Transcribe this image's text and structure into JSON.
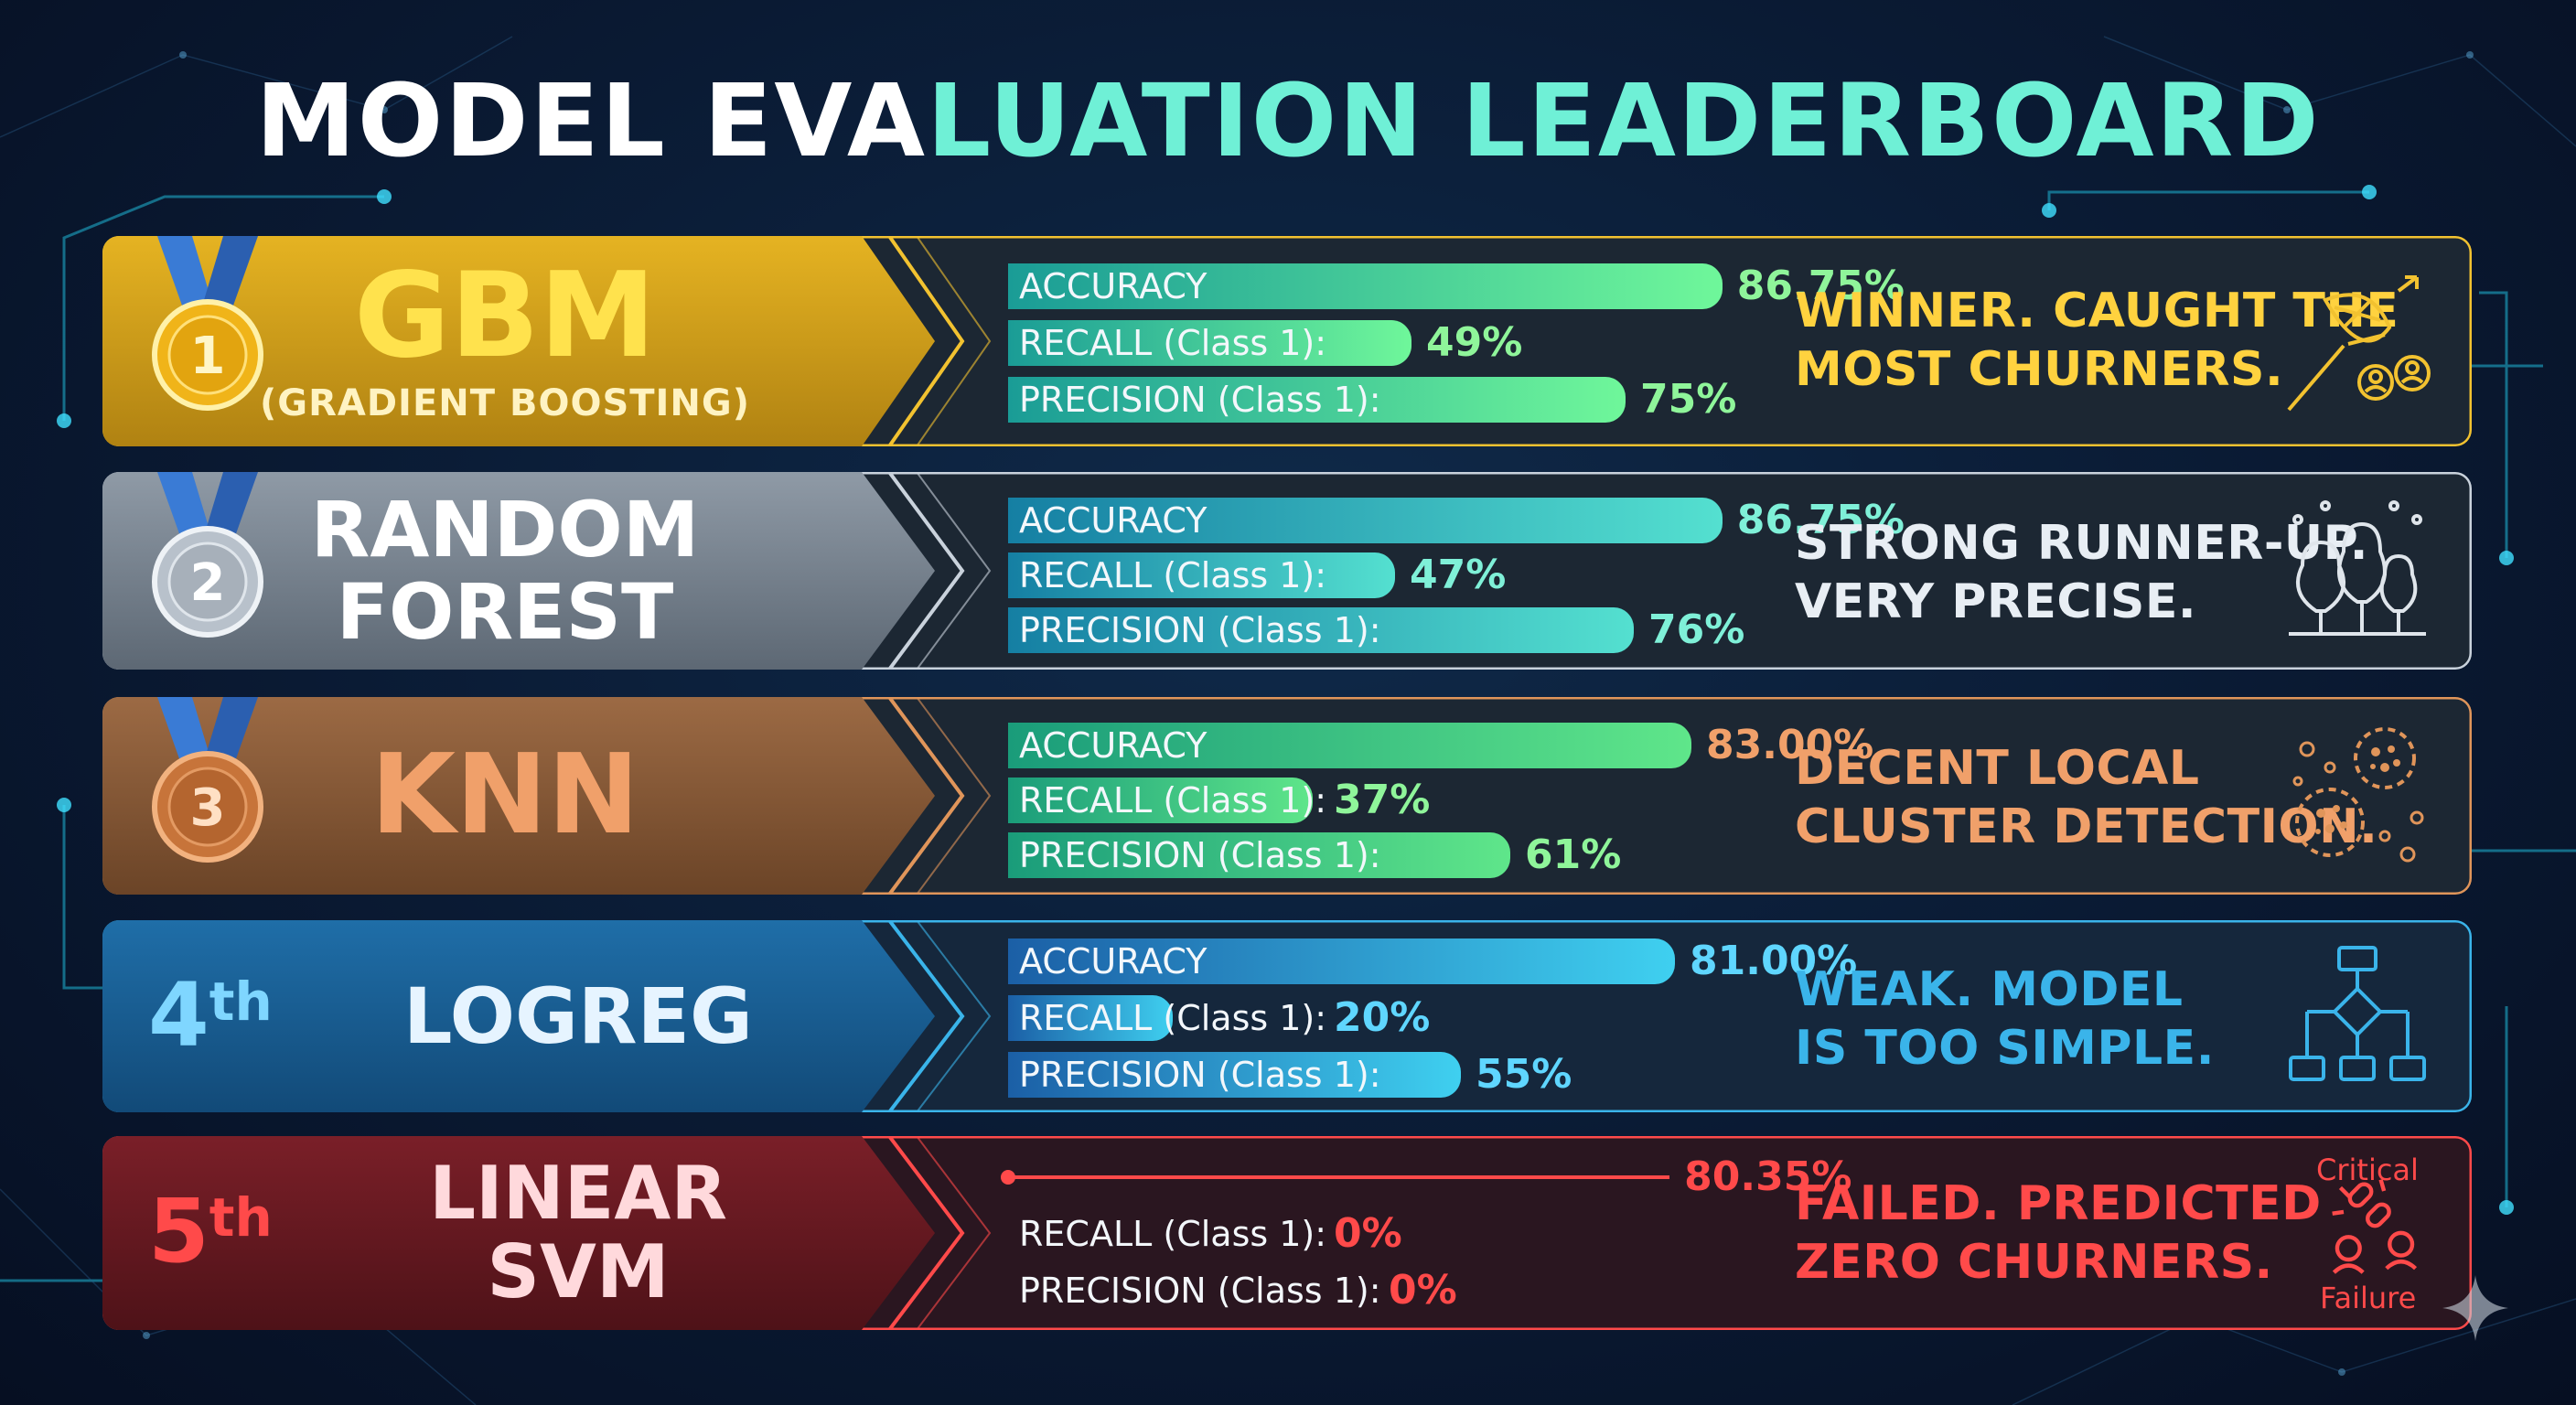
{
  "title": {
    "part_a": "MODEL EVA",
    "part_b": "LUATION LEADERBOARD"
  },
  "chart_data": {
    "type": "bar",
    "title": "MODEL EVALUATION LEADERBOARD",
    "categories": [
      "ACCURACY",
      "RECALL (Class 1)",
      "PRECISION (Class 1)"
    ],
    "xlim": [
      0,
      100
    ],
    "series": [
      {
        "rank": "1",
        "medal": "gold",
        "name": "GBM",
        "subtitle": "(GRADIENT BOOSTING)",
        "values": [
          86.75,
          49,
          75
        ],
        "value_labels": [
          "86.75%",
          "49%",
          "75%"
        ],
        "metric_labels": [
          "ACCURACY",
          "RECALL (Class 1):",
          "PRECISION (Class 1):"
        ],
        "comment": [
          "WINNER. CAUGHT THE",
          "MOST CHURNERS."
        ],
        "icon": "net-catching-users-icon",
        "color": "#f2c230"
      },
      {
        "rank": "2",
        "medal": "silver",
        "name": "RANDOM FOREST",
        "name_lines": [
          "RANDOM",
          "FOREST"
        ],
        "values": [
          86.75,
          47,
          76
        ],
        "value_labels": [
          "86.75%",
          "47%",
          "76%"
        ],
        "metric_labels": [
          "ACCURACY",
          "RECALL (Class 1):",
          "PRECISION (Class 1):"
        ],
        "comment": [
          "STRONG RUNNER-UP.",
          "VERY PRECISE."
        ],
        "icon": "forest-icon",
        "color": "#c9d2dc"
      },
      {
        "rank": "3",
        "medal": "bronze",
        "name": "KNN",
        "values": [
          83.0,
          37,
          61
        ],
        "value_labels": [
          "83.00%",
          "37%",
          "61%"
        ],
        "metric_labels": [
          "ACCURACY",
          "RECALL (Class 1):",
          "PRECISION (Class 1):"
        ],
        "comment": [
          "DECENT LOCAL",
          "CLUSTER DETECTION."
        ],
        "icon": "clusters-icon",
        "color": "#e0955a"
      },
      {
        "rank": "4th",
        "rank_num": "4",
        "rank_suffix": "th",
        "name": "LOGREG",
        "values": [
          81.0,
          20,
          55
        ],
        "value_labels": [
          "81.00%",
          "20%",
          "55%"
        ],
        "metric_labels": [
          "ACCURACY",
          "RECALL (Class 1):",
          "PRECISION (Class 1):"
        ],
        "comment": [
          "WEAK. MODEL",
          "IS TOO SIMPLE."
        ],
        "icon": "flowchart-icon",
        "color": "#3ab4ea"
      },
      {
        "rank": "5th",
        "rank_num": "5",
        "rank_suffix": "th",
        "name": "LINEAR SVM",
        "name_lines": [
          "LINEAR",
          "SVM"
        ],
        "values": [
          80.35,
          0,
          0
        ],
        "value_labels": [
          "80.35%",
          "0%",
          "0%"
        ],
        "metric_labels": [
          "",
          "RECALL (Class 1):",
          "PRECISION (Class 1):"
        ],
        "comment": [
          "FAILED. PREDICTED",
          "ZERO CHURNERS."
        ],
        "icon": "broken-link-user-icon",
        "icon_labels": [
          "Critical",
          "Failure"
        ],
        "color": "#ff4a4a"
      }
    ]
  },
  "colors": {
    "gold": "#f2c230",
    "silver": "#c9d2dc",
    "bronze": "#e0955a",
    "blue": "#3ab4ea",
    "red": "#ff4a4a",
    "accent": "#6ff0d6",
    "bar_green": "#4fe08a",
    "bar_teal": "#1aa6a0",
    "value_green": "#8ff59a"
  }
}
